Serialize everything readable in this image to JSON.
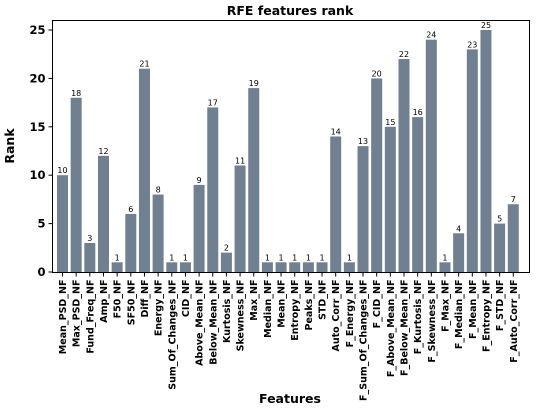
{
  "chart_data": {
    "type": "bar",
    "title": "RFE features rank",
    "xlabel": "Features",
    "ylabel": "Rank",
    "ylim": [
      0,
      26
    ],
    "yticks": [
      0,
      5,
      10,
      15,
      20,
      25
    ],
    "grid": false,
    "bar_color": "#708090",
    "show_value_labels": true,
    "categories": [
      "Mean_PSD_NF",
      "Max_PSD_NF",
      "Fund_Freq_NF",
      "Amp_NF",
      "F50_NF",
      "SF50_NF",
      "Diff_NF",
      "Energy_NF",
      "Sum_Of_Changes_NF",
      "CID_NF",
      "Above_Mean_NF",
      "Below_Mean_NF",
      "Kurtosis_NF",
      "Skewness_NF",
      "Max_NF",
      "Median_NF",
      "Mean_NF",
      "Entropy_NF",
      "Peaks_NF",
      "STD_NF",
      "Auto_Corr_NF",
      "F_Energy_NF",
      "F_Sum_Of_Changes_NF",
      "F_CID_NF",
      "F_Above_Mean_NF",
      "F_Below_Mean_NF",
      "F_Kurtosis_NF",
      "F_Skewness_NF",
      "F_Max_NF",
      "F_Median_NF",
      "F_Mean_NF",
      "F_Entropy_NF",
      "F_STD_NF",
      "F_Auto_Corr_NF"
    ],
    "values": [
      10,
      18,
      3,
      12,
      1,
      6,
      21,
      8,
      1,
      1,
      9,
      17,
      2,
      11,
      19,
      1,
      1,
      1,
      1,
      1,
      14,
      1,
      13,
      20,
      15,
      22,
      16,
      24,
      1,
      4,
      23,
      25,
      5,
      7
    ]
  }
}
